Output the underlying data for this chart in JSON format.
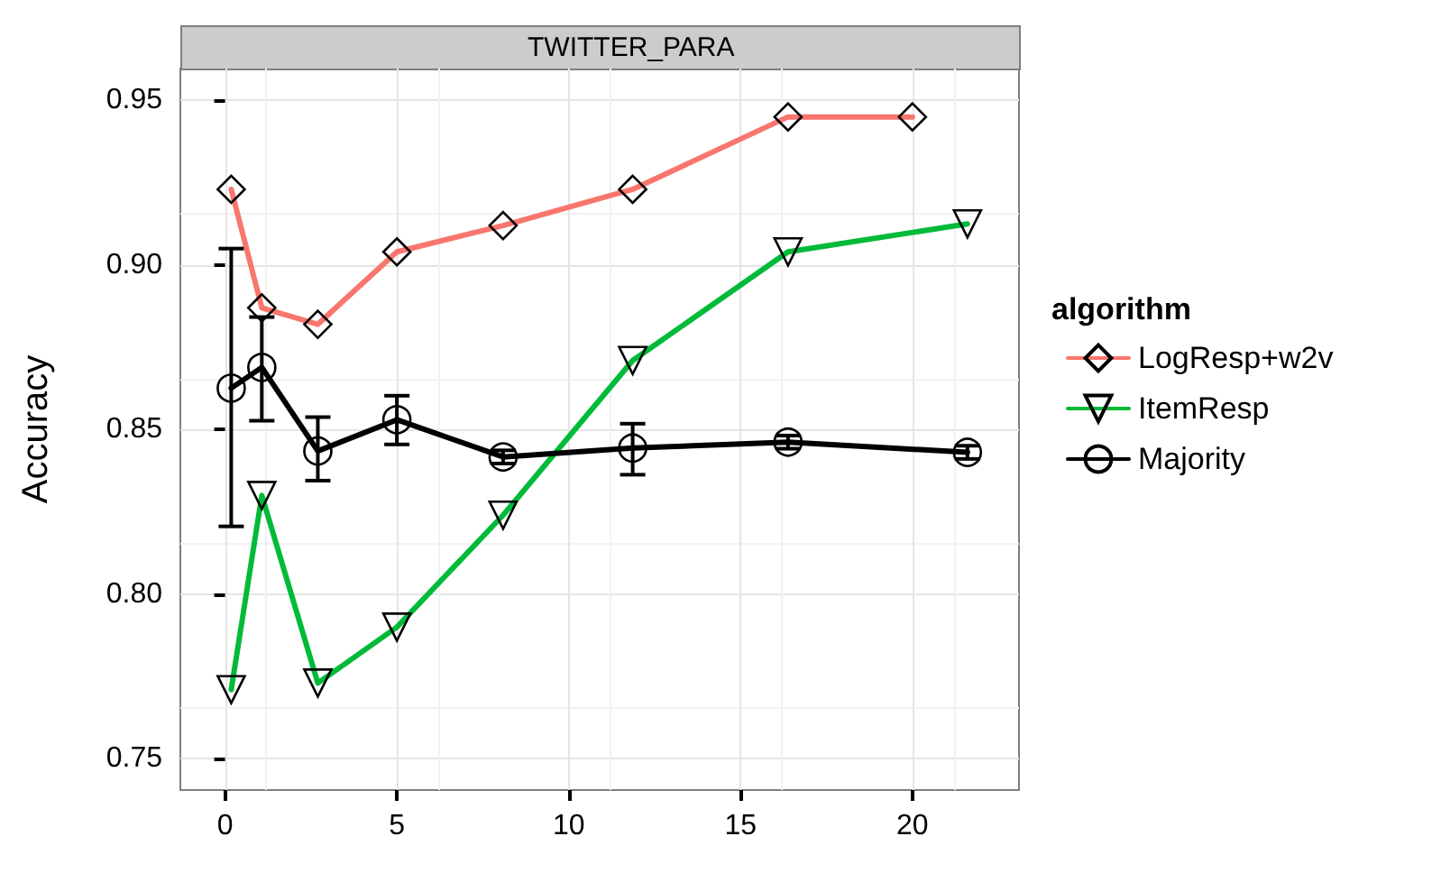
{
  "chart_data": {
    "type": "line",
    "title": "TWITTER_PARA",
    "ylabel": "Accuracy",
    "legend_title": "algorithm",
    "legend": "right",
    "grid": true,
    "line_style": "solid",
    "xlim": [
      -1.3,
      23.1
    ],
    "xticks": [
      0,
      5,
      10,
      15,
      20
    ],
    "ylim": [
      0.7405,
      0.9597
    ],
    "yticks": [
      0.75,
      {
        "value": 0.8,
        "label": "0.80"
      },
      0.85,
      {
        "value": 0.9,
        "label": "0.90"
      },
      0.95
    ],
    "series": [
      {
        "name": "LogResp+w2v",
        "color": "#f8766d",
        "marker": "diamond",
        "x": [
          0.18,
          1.07,
          2.7,
          5.0,
          8.09,
          11.86,
          16.38,
          20.0
        ],
        "values": [
          0.923,
          0.887,
          0.882,
          0.904,
          0.912,
          0.923,
          0.945,
          0.945
        ]
      },
      {
        "name": "ItemResp",
        "color": "#00ba38",
        "marker": "triangle",
        "x": [
          0.18,
          1.07,
          2.7,
          5.0,
          8.09,
          11.86,
          16.38,
          21.6
        ],
        "values": [
          0.771,
          0.83,
          0.773,
          0.79,
          0.824,
          0.871,
          0.904,
          0.9125
        ]
      },
      {
        "name": "Majority",
        "color": "#000000",
        "marker": "circle",
        "x": [
          0.18,
          1.07,
          2.7,
          5.0,
          8.09,
          11.86,
          16.38,
          21.6
        ],
        "values": [
          0.8626,
          0.8689,
          0.8435,
          0.853,
          0.8417,
          0.8444,
          0.8462,
          0.8431
        ],
        "errors": [
          [
            0.8206,
            0.905
          ],
          [
            0.8527,
            0.8842
          ],
          [
            0.8345,
            0.8538
          ],
          [
            0.8455,
            0.8603
          ],
          [
            0.8397,
            0.8437
          ],
          [
            0.8363,
            0.8518
          ],
          [
            0.8442,
            0.8482
          ],
          [
            0.8411,
            0.8451
          ]
        ]
      }
    ]
  }
}
